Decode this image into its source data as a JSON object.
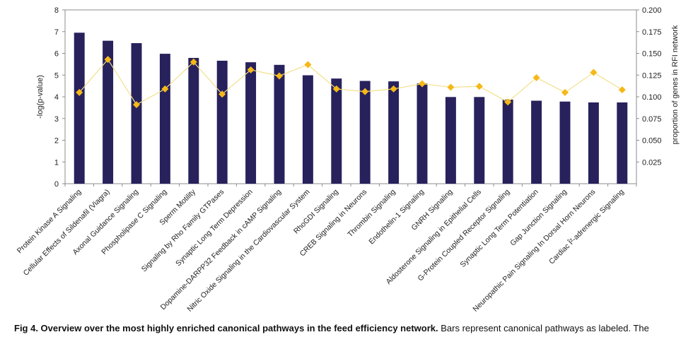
{
  "chart_data": {
    "type": "bar",
    "categories": [
      "Protein Kinase A Signaling",
      "Cellular Effects of Sildenafil (Viagra)",
      "Axonal Guidance Signaling",
      "Phospholipase C Signaling",
      "Sperm Motility",
      "Signaling by Rho Family GTPases",
      "Synaptic Long Term Depression",
      "Dopamine-DARPP32 Feedback in cAMP Signaling",
      "Nitric Oxide Signaling in the Cardiovascular System",
      "RhoGDI Signaling",
      "CREB Signaling in Neurons",
      "Thrombin Signaling",
      "Endothelin-1 Signaling",
      "GNRH Signaling",
      "Aldosterone Signaling in Epithelial Cells",
      "G-Protein Coupled Receptor Signaling",
      "Synaptic Long Term Potentiation",
      "Gap Junction Signaling",
      "Neuropathic Pain Signaling In Dorsal Horn Neurons",
      "Cardiac β-adrenergic Signaling"
    ],
    "category_labels": [
      "Protein Kinase A Signaling",
      "Cellular Effects of Sildenafil (Viagra)",
      "Axonal Guidance Signaling",
      "Phospholipase C Signaling",
      "Sperm Motility",
      "Signaling by Rho Family GTPases",
      "Synaptic Long Term Depression",
      "Dopamine-DARPP32 Feedback in cAMP Signaling",
      "Nitric Oxide Signaling in the Cardiovascular System",
      "RhoGDI Signaling",
      "CREB Signaling in Neurons",
      "Thrombin Signaling",
      "Endothelin-1 Signaling",
      "GNRH Signaling",
      "Aldosterone Signaling in Epithelial Cells",
      "G-Protein Coupled Receptor Signaling",
      "Synaptic Long Term Potentiation",
      "Gap Junction Signaling",
      "Neuropathic Pain Signaling In Dorsal Horn Neurons",
      "Cardiac Î²-adrenergic Signaling"
    ],
    "series": [
      {
        "type": "bar",
        "axis": "left",
        "color": "#27215c",
        "values": [
          6.95,
          6.58,
          6.47,
          5.98,
          5.79,
          5.66,
          5.59,
          5.47,
          4.99,
          4.84,
          4.73,
          4.71,
          4.61,
          3.99,
          3.99,
          3.87,
          3.82,
          3.78,
          3.74,
          3.74
        ]
      },
      {
        "type": "line",
        "axis": "right",
        "color": "#f5b816",
        "line_color": "#f3e08a",
        "marker": "diamond",
        "values": [
          0.105,
          0.143,
          0.091,
          0.109,
          0.14,
          0.103,
          0.131,
          0.124,
          0.137,
          0.109,
          0.106,
          0.109,
          0.115,
          0.111,
          0.112,
          0.094,
          0.122,
          0.105,
          0.128,
          0.108
        ]
      }
    ],
    "ylabel": "-log(p-value)",
    "ylim": [
      0,
      8
    ],
    "yticks": [
      "0",
      "1",
      "2",
      "3",
      "4",
      "5",
      "6",
      "7",
      "8"
    ],
    "y2label": "proportion of genes in RFI network",
    "y2lim": [
      0,
      0.2
    ],
    "y2ticks": [
      "0.025",
      "0.050",
      "0.075",
      "0.100",
      "0.125",
      "0.150",
      "0.175",
      "0.200"
    ],
    "grid": false,
    "legend": "none"
  },
  "caption": {
    "bold": "Fig 4. Overview over the most highly enriched canonical pathways in the feed efficiency network.",
    "text": " Bars represent canonical pathways as labeled. The"
  }
}
